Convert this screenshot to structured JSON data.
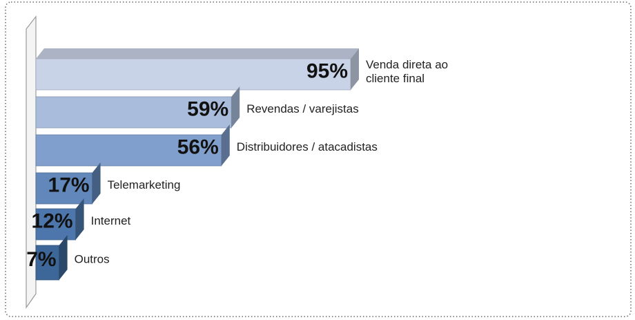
{
  "chart_data": {
    "type": "bar",
    "orientation": "horizontal",
    "categories": [
      "Venda direta ao cliente final",
      "Revendas / varejistas",
      "Distribuidores / atacadistas",
      "Telemarketing",
      "Internet",
      "Outros"
    ],
    "values": [
      95,
      59,
      56,
      17,
      12,
      7
    ],
    "value_labels": [
      "95%",
      "59%",
      "56%",
      "17%",
      "12%",
      "7%"
    ],
    "colors": [
      "#c9d3e7",
      "#a9bcdb",
      "#819fcc",
      "#6288bb",
      "#4d77ac",
      "#3e6799"
    ],
    "xlim": [
      0,
      100
    ]
  }
}
